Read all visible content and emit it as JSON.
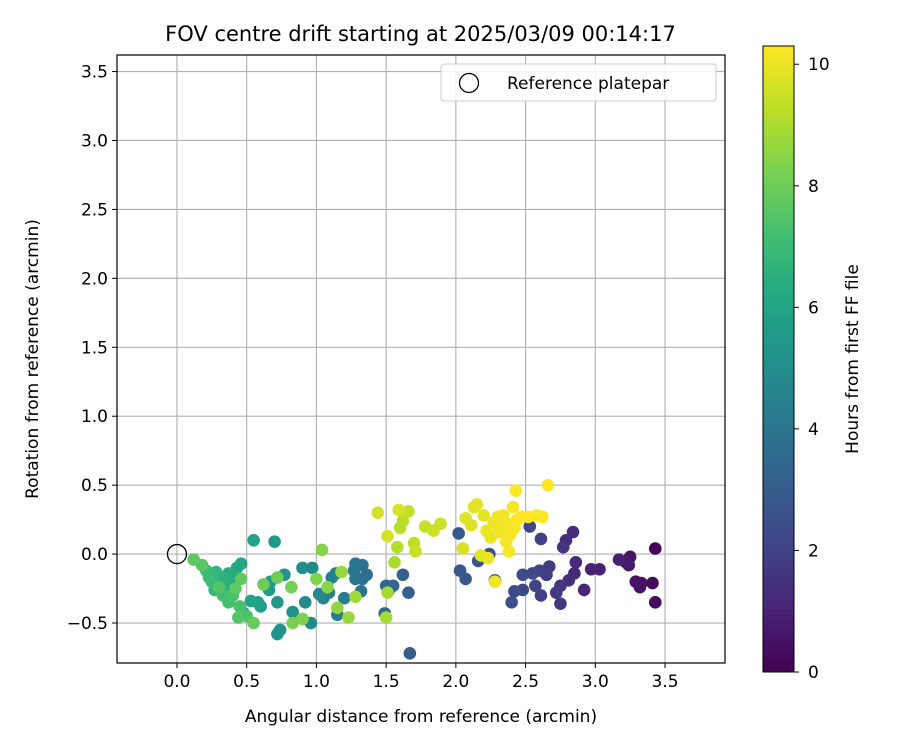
{
  "chart_data": {
    "type": "scatter",
    "title": "FOV centre drift starting at 2025/03/09 00:14:17",
    "xlabel": "Angular distance from reference (arcmin)",
    "ylabel": "Rotation from reference (arcmin)",
    "xlim": [
      -0.43,
      3.93
    ],
    "ylim": [
      -0.79,
      3.62
    ],
    "x_ticks": [
      0.0,
      0.5,
      1.0,
      1.5,
      2.0,
      2.5,
      3.0,
      3.5
    ],
    "x_tick_labels": [
      "0.0",
      "0.5",
      "1.0",
      "1.5",
      "2.0",
      "2.5",
      "3.0",
      "3.5"
    ],
    "y_ticks": [
      -0.5,
      0.0,
      0.5,
      1.0,
      1.5,
      2.0,
      2.5,
      3.0,
      3.5
    ],
    "y_tick_labels": [
      "−0.5",
      "0.0",
      "0.5",
      "1.0",
      "1.5",
      "2.0",
      "2.5",
      "3.0",
      "3.5"
    ],
    "grid": true,
    "legend": {
      "position": "top-right",
      "entries": [
        "Reference platepar"
      ]
    },
    "reference_point": {
      "x": 0.0,
      "y": 0.0
    },
    "colorbar": {
      "label": "Hours from first FF file",
      "colormap": "viridis",
      "range": [
        0,
        10.3
      ],
      "ticks": [
        0,
        2,
        4,
        6,
        8,
        10
      ],
      "tick_labels": [
        "0",
        "2",
        "4",
        "6",
        "8",
        "10"
      ]
    },
    "points": [
      [
        3.43,
        0.04,
        0.1
      ],
      [
        3.43,
        -0.35,
        0.2
      ],
      [
        3.41,
        -0.21,
        0.3
      ],
      [
        3.33,
        -0.21,
        0.4
      ],
      [
        3.32,
        -0.24,
        0.5
      ],
      [
        3.29,
        -0.2,
        0.6
      ],
      [
        3.25,
        -0.02,
        0.6
      ],
      [
        3.24,
        -0.08,
        0.7
      ],
      [
        3.22,
        -0.06,
        0.8
      ],
      [
        3.17,
        -0.04,
        0.9
      ],
      [
        3.03,
        -0.11,
        1.0
      ],
      [
        2.97,
        -0.11,
        1.0
      ],
      [
        2.92,
        -0.26,
        1.1
      ],
      [
        2.86,
        -0.06,
        1.2
      ],
      [
        2.85,
        -0.14,
        1.2
      ],
      [
        2.84,
        0.16,
        1.3
      ],
      [
        2.81,
        -0.19,
        1.4
      ],
      [
        2.79,
        0.1,
        1.4
      ],
      [
        2.77,
        0.05,
        1.5
      ],
      [
        2.75,
        -0.36,
        1.6
      ],
      [
        2.75,
        -0.23,
        1.6
      ],
      [
        2.72,
        -0.28,
        1.7
      ],
      [
        2.67,
        -0.09,
        1.8
      ],
      [
        2.65,
        -0.15,
        1.8
      ],
      [
        2.61,
        0.11,
        1.9
      ],
      [
        2.61,
        -0.3,
        2.0
      ],
      [
        2.6,
        -0.12,
        2.0
      ],
      [
        2.57,
        -0.23,
        2.1
      ],
      [
        2.55,
        -0.14,
        2.2
      ],
      [
        2.53,
        0.2,
        2.2
      ],
      [
        2.48,
        -0.26,
        2.3
      ],
      [
        2.48,
        -0.15,
        2.4
      ],
      [
        2.42,
        -0.27,
        2.4
      ],
      [
        2.4,
        -0.35,
        2.5
      ],
      [
        2.28,
        -0.19,
        2.6
      ],
      [
        2.24,
        0.0,
        2.6
      ],
      [
        2.16,
        -0.05,
        2.7
      ],
      [
        2.07,
        -0.18,
        2.8
      ],
      [
        2.03,
        -0.12,
        2.8
      ],
      [
        2.02,
        0.15,
        2.9
      ],
      [
        1.67,
        -0.72,
        3.0
      ],
      [
        1.66,
        -0.28,
        3.1
      ],
      [
        1.62,
        -0.15,
        3.2
      ],
      [
        1.55,
        -0.23,
        3.3
      ],
      [
        1.52,
        -0.26,
        3.4
      ],
      [
        1.5,
        -0.23,
        3.5
      ],
      [
        1.49,
        -0.43,
        3.5
      ],
      [
        1.36,
        -0.15,
        3.6
      ],
      [
        1.33,
        -0.08,
        3.7
      ],
      [
        1.33,
        -0.18,
        3.8
      ],
      [
        1.32,
        -0.27,
        3.9
      ],
      [
        1.28,
        -0.07,
        4.0
      ],
      [
        1.28,
        -0.18,
        4.0
      ],
      [
        1.27,
        -0.12,
        4.1
      ],
      [
        1.2,
        -0.32,
        4.2
      ],
      [
        1.15,
        -0.44,
        4.3
      ],
      [
        1.14,
        -0.14,
        4.4
      ],
      [
        1.11,
        -0.17,
        4.4
      ],
      [
        1.09,
        -0.28,
        4.5
      ],
      [
        1.05,
        -0.32,
        4.6
      ],
      [
        1.02,
        -0.29,
        4.7
      ],
      [
        0.97,
        -0.1,
        4.8
      ],
      [
        0.96,
        -0.5,
        4.8
      ],
      [
        0.92,
        -0.35,
        4.9
      ],
      [
        0.9,
        -0.1,
        5.0
      ],
      [
        0.83,
        -0.42,
        5.1
      ],
      [
        0.77,
        -0.15,
        5.1
      ],
      [
        0.74,
        -0.55,
        5.2
      ],
      [
        0.72,
        -0.58,
        5.3
      ],
      [
        0.72,
        -0.35,
        5.4
      ],
      [
        0.7,
        0.09,
        5.5
      ],
      [
        0.67,
        -0.2,
        5.6
      ],
      [
        0.66,
        -0.26,
        5.6
      ],
      [
        0.6,
        -0.38,
        5.7
      ],
      [
        0.58,
        -0.35,
        5.8
      ],
      [
        0.55,
        0.1,
        5.9
      ],
      [
        0.53,
        -0.34,
        6.0
      ],
      [
        0.48,
        -0.43,
        6.0
      ],
      [
        0.46,
        -0.07,
        6.1
      ],
      [
        0.43,
        -0.1,
        6.2
      ],
      [
        0.42,
        -0.16,
        6.3
      ],
      [
        0.4,
        -0.2,
        6.3
      ],
      [
        0.37,
        -0.14,
        6.4
      ],
      [
        0.35,
        -0.23,
        6.5
      ],
      [
        0.33,
        -0.18,
        6.6
      ],
      [
        0.3,
        -0.16,
        6.6
      ],
      [
        0.28,
        -0.13,
        6.7
      ],
      [
        0.27,
        -0.26,
        6.8
      ],
      [
        0.25,
        -0.2,
        6.9
      ],
      [
        0.23,
        -0.17,
        7.0
      ],
      [
        0.21,
        -0.12,
        7.0
      ],
      [
        0.33,
        -0.3,
        7.1
      ],
      [
        0.37,
        -0.35,
        7.2
      ],
      [
        0.4,
        -0.3,
        7.3
      ],
      [
        0.45,
        -0.38,
        7.3
      ],
      [
        0.5,
        -0.45,
        7.4
      ],
      [
        0.44,
        -0.46,
        7.5
      ],
      [
        0.3,
        -0.24,
        7.5
      ],
      [
        0.18,
        -0.08,
        7.6
      ],
      [
        0.12,
        -0.04,
        7.7
      ],
      [
        0.42,
        -0.25,
        7.7
      ],
      [
        0.46,
        -0.18,
        7.8
      ],
      [
        0.55,
        -0.5,
        7.9
      ],
      [
        0.62,
        -0.22,
        8.0
      ],
      [
        0.72,
        -0.17,
        8.0
      ],
      [
        0.82,
        -0.24,
        8.1
      ],
      [
        0.83,
        -0.5,
        8.2
      ],
      [
        0.9,
        -0.47,
        8.3
      ],
      [
        1.0,
        -0.18,
        8.3
      ],
      [
        1.04,
        0.03,
        8.4
      ],
      [
        1.08,
        -0.24,
        8.5
      ],
      [
        1.15,
        -0.39,
        8.6
      ],
      [
        1.18,
        -0.13,
        8.7
      ],
      [
        1.23,
        -0.46,
        8.7
      ],
      [
        1.28,
        -0.31,
        8.8
      ],
      [
        1.5,
        -0.46,
        8.9
      ],
      [
        1.51,
        -0.28,
        8.9
      ],
      [
        1.56,
        -0.06,
        9.0
      ],
      [
        1.58,
        0.05,
        9.1
      ],
      [
        1.6,
        0.19,
        9.2
      ],
      [
        1.62,
        0.24,
        9.2
      ],
      [
        1.66,
        0.31,
        9.3
      ],
      [
        1.7,
        0.08,
        9.3
      ],
      [
        1.71,
        0.02,
        9.4
      ],
      [
        1.78,
        0.2,
        9.4
      ],
      [
        1.84,
        0.17,
        9.5
      ],
      [
        1.89,
        0.22,
        9.5
      ],
      [
        1.44,
        0.3,
        9.6
      ],
      [
        1.51,
        0.13,
        9.6
      ],
      [
        1.59,
        0.32,
        9.7
      ],
      [
        2.05,
        0.04,
        9.7
      ],
      [
        2.07,
        0.26,
        9.8
      ],
      [
        2.11,
        0.21,
        9.8
      ],
      [
        2.13,
        0.34,
        9.8
      ],
      [
        2.15,
        0.36,
        9.9
      ],
      [
        2.18,
        -0.01,
        9.9
      ],
      [
        2.2,
        0.28,
        9.9
      ],
      [
        2.22,
        0.17,
        10.0
      ],
      [
        2.23,
        -0.03,
        10.0
      ],
      [
        2.25,
        0.12,
        10.0
      ],
      [
        2.27,
        0.23,
        10.0
      ],
      [
        2.28,
        -0.2,
        10.1
      ],
      [
        2.3,
        0.27,
        10.1
      ],
      [
        2.31,
        0.16,
        10.1
      ],
      [
        2.33,
        0.2,
        10.1
      ],
      [
        2.34,
        0.28,
        10.1
      ],
      [
        2.36,
        0.09,
        10.2
      ],
      [
        2.37,
        0.22,
        10.2
      ],
      [
        2.38,
        0.02,
        10.2
      ],
      [
        2.39,
        0.14,
        10.2
      ],
      [
        2.41,
        0.34,
        10.2
      ],
      [
        2.42,
        0.19,
        10.2
      ],
      [
        2.43,
        0.46,
        10.3
      ],
      [
        2.44,
        0.25,
        10.3
      ],
      [
        2.47,
        0.27,
        10.3
      ],
      [
        2.52,
        0.27,
        10.3
      ],
      [
        2.58,
        0.28,
        10.3
      ],
      [
        2.62,
        0.27,
        10.3
      ],
      [
        2.66,
        0.5,
        10.3
      ]
    ]
  }
}
